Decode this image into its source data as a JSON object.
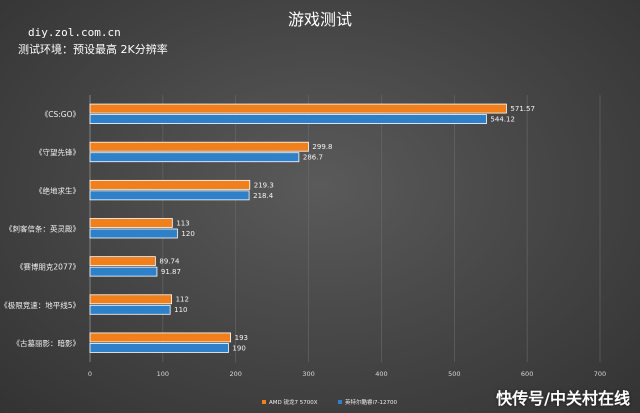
{
  "chart_data": {
    "type": "bar",
    "orientation": "horizontal",
    "title": "游戏测试",
    "source_text": "diy.zol.com.cn",
    "subtitle": "测试环境：预设最高 2K分辨率",
    "categories": [
      "《CS:GO》",
      "《守望先锋》",
      "《绝地求生》",
      "《刺客信条：英灵殿》",
      "《赛博朋克2077》",
      "《极限竞速：地平线5》",
      "《古墓丽影：暗影》"
    ],
    "series": [
      {
        "name": "AMD 锐龙7 5700X",
        "color": "#f07f1c",
        "values": [
          571.57,
          299.8,
          219.3,
          113,
          89.74,
          112,
          193
        ]
      },
      {
        "name": "英特尔酷睿i7-12700",
        "color": "#2e80c8",
        "values": [
          544.12,
          286.7,
          218.4,
          120,
          91.87,
          110,
          190
        ]
      }
    ],
    "xlim": [
      0,
      700
    ],
    "xticks": [
      0,
      100,
      200,
      300,
      400,
      500,
      600,
      700
    ],
    "grid": true,
    "legend_position": "bottom"
  },
  "watermark": "快传号/中关村在线"
}
